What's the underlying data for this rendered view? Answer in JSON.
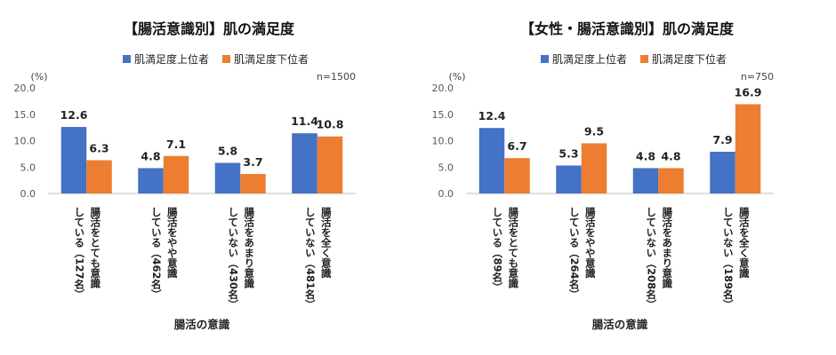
{
  "chart_data": [
    {
      "type": "bar",
      "title": "【腸活意識別】肌の満足度",
      "unit": "(%)",
      "note": "n=1500",
      "xlabel": "腸活の意識",
      "ylabel": "",
      "ylim": [
        0,
        20
      ],
      "yticks": [
        "0.0",
        "5.0",
        "10.0",
        "15.0",
        "20.0"
      ],
      "grid": false,
      "legend_position": "top",
      "categories": [
        [
          "腸活をとても意識",
          "している（127名）"
        ],
        [
          "腸活をやや意識",
          "している（462名）"
        ],
        [
          "腸活をあまり意識",
          "していない（430名）"
        ],
        [
          "腸活を全く意識",
          "していない（481名）"
        ]
      ],
      "series": [
        {
          "name": "肌満足度上位者",
          "color": "#4472C4",
          "values": [
            12.6,
            4.8,
            5.8,
            11.4
          ],
          "labels": [
            "12.6",
            "4.8",
            "5.8",
            "11.4"
          ]
        },
        {
          "name": "肌満足度下位者",
          "color": "#ED7D31",
          "values": [
            6.3,
            7.1,
            3.7,
            10.8
          ],
          "labels": [
            "6.3",
            "7.1",
            "3.7",
            "10.8"
          ]
        }
      ]
    },
    {
      "type": "bar",
      "title": "【女性・腸活意識別】肌の満足度",
      "unit": "(%)",
      "note": "n=750",
      "xlabel": "腸活の意識",
      "ylabel": "",
      "ylim": [
        0,
        20
      ],
      "yticks": [
        "0.0",
        "5.0",
        "10.0",
        "15.0",
        "20.0"
      ],
      "grid": false,
      "legend_position": "top",
      "categories": [
        [
          "腸活をとても意識",
          "している（89名）"
        ],
        [
          "腸活をやや意識",
          "している（264名）"
        ],
        [
          "腸活をあまり意識",
          "していない（208名）"
        ],
        [
          "腸活を全く意識",
          "していない（189名）"
        ]
      ],
      "series": [
        {
          "name": "肌満足度上位者",
          "color": "#4472C4",
          "values": [
            12.4,
            5.3,
            4.8,
            7.9
          ],
          "labels": [
            "12.4",
            "5.3",
            "4.8",
            "7.9"
          ]
        },
        {
          "name": "肌満足度下位者",
          "color": "#ED7D31",
          "values": [
            6.7,
            9.5,
            4.8,
            16.9
          ],
          "labels": [
            "6.7",
            "9.5",
            "4.8",
            "16.9"
          ]
        }
      ]
    }
  ]
}
